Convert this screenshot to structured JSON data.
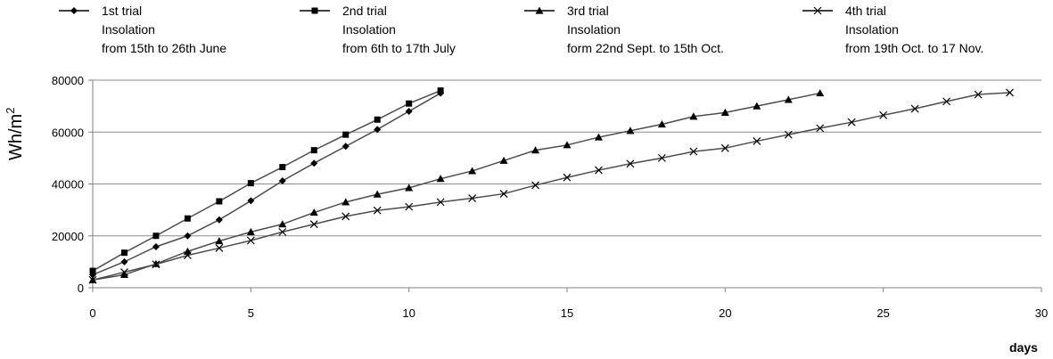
{
  "chart_data": {
    "type": "line",
    "title": "",
    "xlabel": "days",
    "ylabel": "Wh/m",
    "ylabel_sup": "2",
    "xlim": [
      0,
      30
    ],
    "ylim": [
      0,
      80000
    ],
    "xticks": [
      0,
      5,
      10,
      15,
      20,
      25,
      30
    ],
    "yticks": [
      0,
      20000,
      40000,
      60000,
      80000
    ],
    "grid": "horizontal",
    "legend_position": "top",
    "series": [
      {
        "name": "1st trial",
        "label_lines": [
          "1st trial",
          "Insolation",
          "from 15th to 26th June"
        ],
        "marker": "diamond",
        "x": [
          0,
          1,
          2,
          3,
          4,
          5,
          6,
          7,
          8,
          9,
          10,
          11
        ],
        "y": [
          5000,
          10000,
          15800,
          20000,
          26200,
          33500,
          41200,
          48000,
          54500,
          61000,
          68000,
          75000
        ]
      },
      {
        "name": "2nd trial",
        "label_lines": [
          "2nd trial",
          "Insolation",
          "from 6th to 17th July"
        ],
        "marker": "square",
        "x": [
          0,
          1,
          2,
          3,
          4,
          5,
          6,
          7,
          8,
          9,
          10,
          11
        ],
        "y": [
          6500,
          13500,
          20000,
          26700,
          33300,
          40300,
          46500,
          53000,
          59000,
          64800,
          71000,
          76000
        ]
      },
      {
        "name": "3rd trial",
        "label_lines": [
          "3rd trial",
          "Insolation",
          "form 22nd Sept. to 15th Oct."
        ],
        "marker": "triangle",
        "x": [
          0,
          1,
          2,
          3,
          4,
          5,
          6,
          7,
          8,
          9,
          10,
          11,
          12,
          13,
          14,
          15,
          16,
          17,
          18,
          19,
          20,
          21,
          22,
          23
        ],
        "y": [
          3000,
          5000,
          9200,
          14000,
          18000,
          21500,
          24500,
          29000,
          33000,
          36000,
          38500,
          42000,
          45000,
          49000,
          53000,
          55000,
          58000,
          60500,
          63000,
          66000,
          67500,
          70000,
          72500,
          75000
        ]
      },
      {
        "name": "4th trial",
        "label_lines": [
          "4th trial",
          "Insolation",
          "from 19th Oct. to 17 Nov."
        ],
        "marker": "x",
        "x": [
          0,
          1,
          2,
          3,
          4,
          5,
          6,
          7,
          8,
          9,
          10,
          11,
          12,
          13,
          14,
          15,
          16,
          17,
          18,
          19,
          20,
          21,
          22,
          23,
          24,
          25,
          26,
          27,
          28,
          29
        ],
        "y": [
          3000,
          6000,
          9000,
          12500,
          15300,
          18200,
          21500,
          24500,
          27500,
          29800,
          31200,
          33000,
          34500,
          36200,
          39500,
          42500,
          45300,
          47800,
          50000,
          52500,
          53800,
          56500,
          59000,
          61500,
          63800,
          66500,
          69000,
          71800,
          74500,
          75200
        ]
      }
    ]
  }
}
